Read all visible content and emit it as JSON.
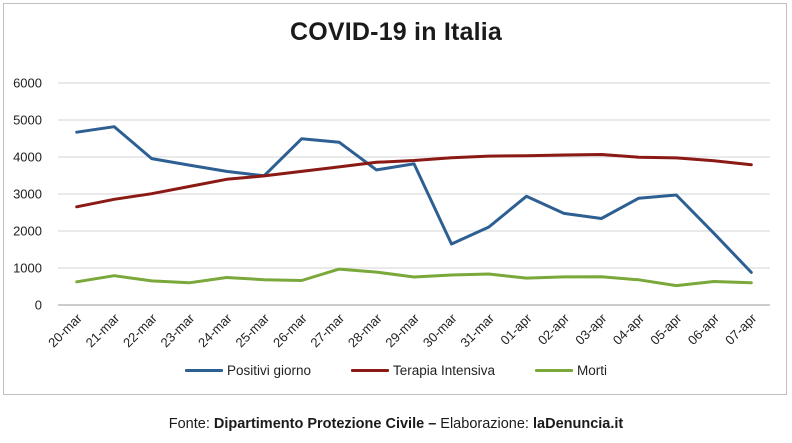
{
  "chart_data": {
    "type": "line",
    "title": "COVID-19 in Italia",
    "categories": [
      "20-mar",
      "21-mar",
      "22-mar",
      "23-mar",
      "24-mar",
      "25-mar",
      "26-mar",
      "27-mar",
      "28-mar",
      "29-mar",
      "30-mar",
      "31-mar",
      "01-apr",
      "02-apr",
      "03-apr",
      "04-apr",
      "05-apr",
      "06-apr",
      "07-apr"
    ],
    "ylim": [
      0,
      6000
    ],
    "yticks": [
      "0",
      "1000",
      "2000",
      "3000",
      "4000",
      "5000",
      "6000"
    ],
    "grid": true,
    "legend_position": "bottom",
    "series": [
      {
        "name": "Positivi giorno",
        "color": "#2e5f93",
        "values": [
          4670,
          4820,
          3957,
          3780,
          3612,
          3491,
          4492,
          4401,
          3651,
          3815,
          1648,
          2107,
          2937,
          2477,
          2339,
          2886,
          2972,
          1941,
          880
        ]
      },
      {
        "name": "Terapia Intensiva",
        "color": "#8b1a15",
        "values": [
          2655,
          2857,
          3009,
          3204,
          3396,
          3489,
          3612,
          3732,
          3856,
          3906,
          3981,
          4023,
          4035,
          4053,
          4068,
          3994,
          3977,
          3898,
          3792
        ]
      },
      {
        "name": "Morti",
        "color": "#7aa83a",
        "values": [
          627,
          793,
          651,
          601,
          743,
          683,
          662,
          969,
          889,
          756,
          812,
          837,
          727,
          760,
          766,
          681,
          525,
          636,
          604
        ]
      }
    ]
  },
  "source": {
    "prefix": "Fonte: ",
    "org": "Dipartimento Protezione Civile –",
    "middle": " Elaborazione: ",
    "site": "laDenuncia.it"
  }
}
